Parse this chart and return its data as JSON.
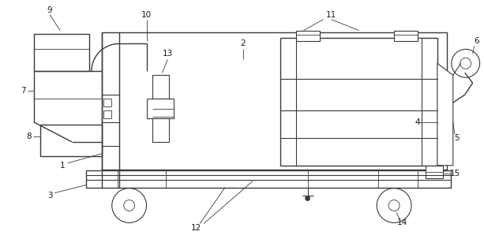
{
  "bg_color": "#ffffff",
  "line_color": "#3a3a3a",
  "label_color": "#1a1a1a",
  "figure_width": 6.13,
  "figure_height": 3.03,
  "dpi": 100
}
